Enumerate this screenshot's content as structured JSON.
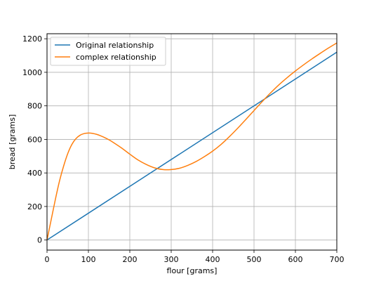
{
  "chart_data": {
    "type": "line",
    "title": "",
    "xlabel": "flour [grams]",
    "ylabel": "bread [grams]",
    "xlim": [
      0,
      700
    ],
    "ylim": [
      -60,
      1230
    ],
    "xticks": [
      0,
      100,
      200,
      300,
      400,
      500,
      600,
      700
    ],
    "yticks": [
      0,
      200,
      400,
      600,
      800,
      1000,
      1200
    ],
    "grid": true,
    "legend_position": "top-left",
    "series": [
      {
        "name": "Original relationship",
        "color": "#1f77b4",
        "x": [
          0,
          700
        ],
        "y": [
          0,
          1120
        ]
      },
      {
        "name": "complex relationship",
        "color": "#ff7f0e",
        "x": [
          0,
          10,
          20,
          30,
          40,
          50,
          60,
          70,
          80,
          90,
          100,
          110,
          120,
          130,
          140,
          150,
          160,
          180,
          200,
          220,
          240,
          260,
          280,
          300,
          320,
          340,
          360,
          380,
          400,
          420,
          440,
          460,
          480,
          500,
          520,
          540,
          560,
          580,
          600,
          620,
          640,
          660,
          680,
          700
        ],
        "y": [
          0,
          120,
          240,
          350,
          440,
          515,
          570,
          605,
          625,
          635,
          638,
          636,
          630,
          621,
          610,
          597,
          582,
          549,
          512,
          477,
          450,
          430,
          420,
          420,
          428,
          445,
          468,
          497,
          530,
          569,
          615,
          665,
          718,
          772,
          826,
          877,
          925,
          968,
          1008,
          1045,
          1080,
          1113,
          1145,
          1175
        ]
      }
    ]
  }
}
